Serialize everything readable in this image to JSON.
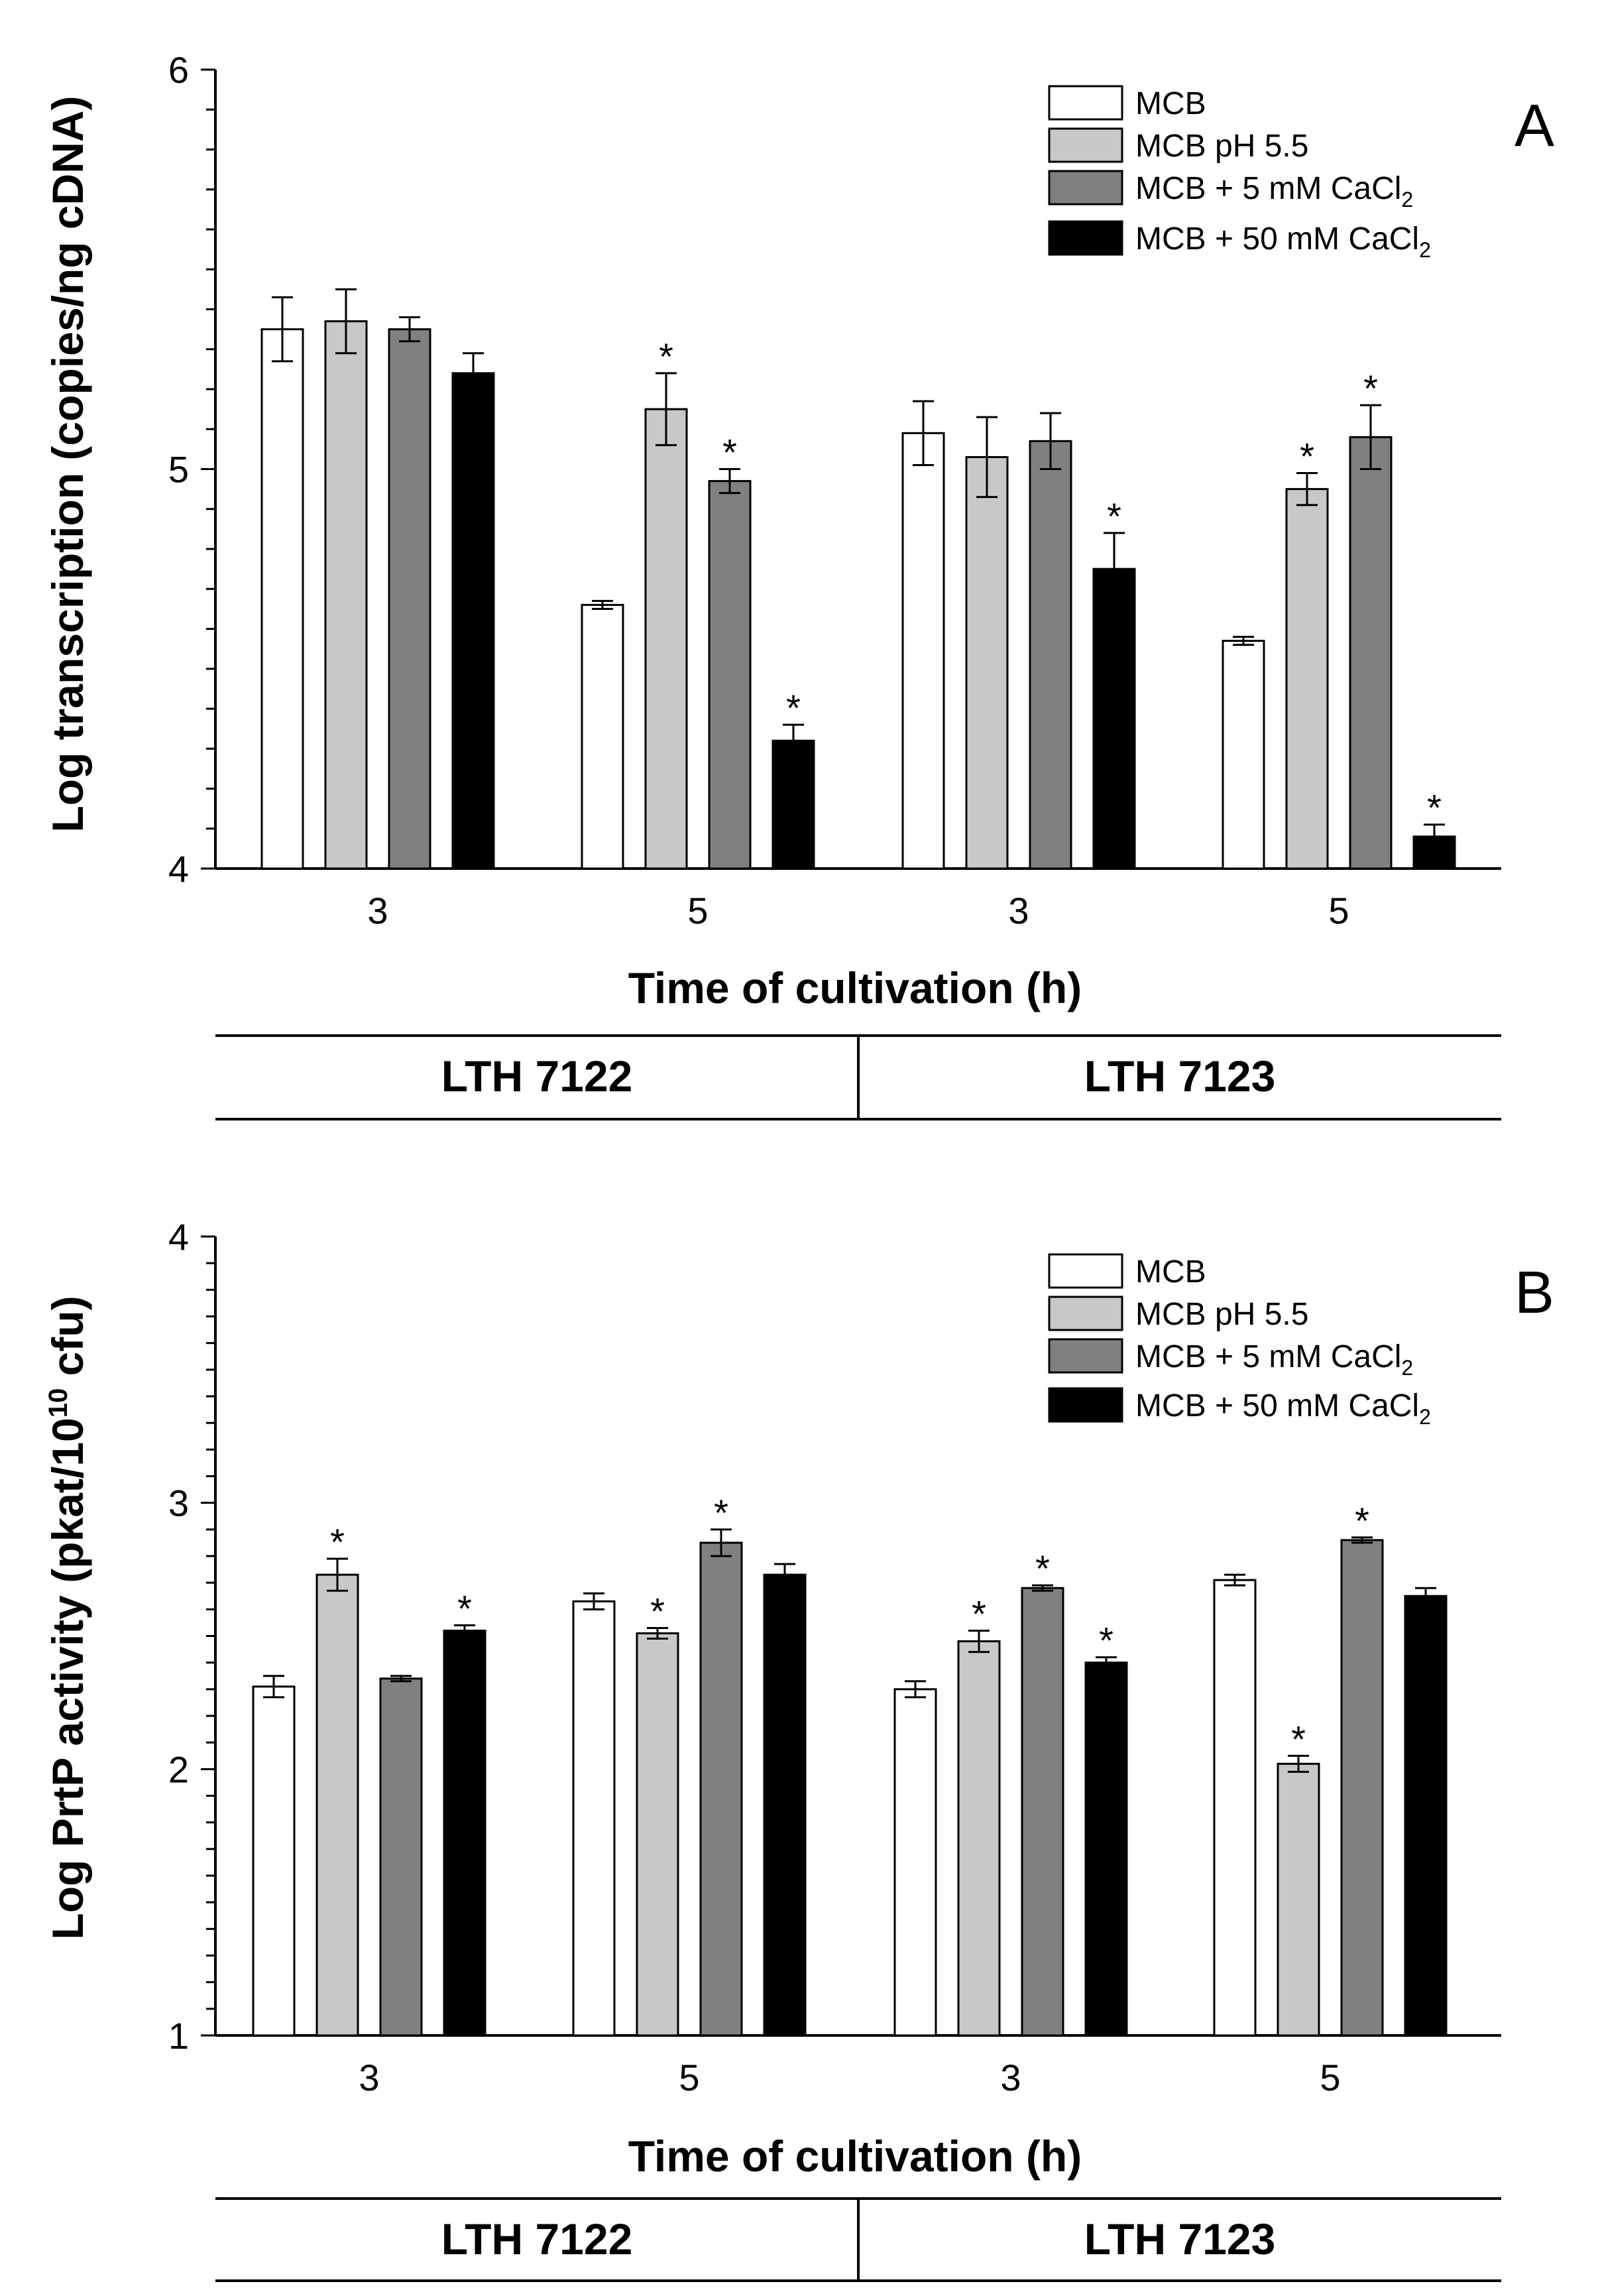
{
  "chart_data": [
    {
      "type": "bar",
      "panel_label": "A",
      "ylabel": "Log transcription (copies/ng cDNA)",
      "xlabel": "Time of cultivation (h)",
      "ylim": [
        4,
        6
      ],
      "yticks": [
        "4",
        "5",
        "6"
      ],
      "categories": [
        "3",
        "5",
        "3",
        "5"
      ],
      "strains": [
        "LTH 7122",
        "LTH 7123"
      ],
      "series": [
        {
          "name": "MCB",
          "color": "#ffffff",
          "values": [
            5.35,
            4.66,
            5.09,
            4.57
          ],
          "errors": [
            0.08,
            0.01,
            0.08,
            0.01
          ],
          "significant": [
            false,
            false,
            false,
            false
          ]
        },
        {
          "name": "MCB pH 5.5",
          "color": "#c8c8c8",
          "values": [
            5.37,
            5.15,
            5.03,
            4.95
          ],
          "errors": [
            0.08,
            0.09,
            0.1,
            0.04
          ],
          "significant": [
            false,
            true,
            false,
            true
          ]
        },
        {
          "name": "MCB + 5 mM CaCl2",
          "color": "#808080",
          "values": [
            5.35,
            4.97,
            5.07,
            5.08
          ],
          "errors": [
            0.03,
            0.03,
            0.07,
            0.08
          ],
          "significant": [
            false,
            true,
            false,
            true
          ]
        },
        {
          "name": "MCB + 50 mM CaCl2",
          "color": "#000000",
          "values": [
            5.24,
            4.32,
            4.75,
            4.08
          ],
          "errors": [
            0.05,
            0.04,
            0.09,
            0.03
          ],
          "significant": [
            false,
            true,
            true,
            true
          ]
        }
      ]
    },
    {
      "type": "bar",
      "panel_label": "B",
      "ylabel": "Log PrtP activity (pkat/10^10 cfu)",
      "xlabel": "Time of cultivation (h)",
      "ylim": [
        1,
        4
      ],
      "yticks": [
        "1",
        "2",
        "3",
        "4"
      ],
      "categories": [
        "3",
        "5",
        "3",
        "5"
      ],
      "strains": [
        "LTH 7122",
        "LTH 7123"
      ],
      "series": [
        {
          "name": "MCB",
          "color": "#ffffff",
          "values": [
            2.31,
            2.63,
            2.3,
            2.71
          ],
          "errors": [
            0.04,
            0.03,
            0.03,
            0.02
          ],
          "significant": [
            false,
            false,
            false,
            false
          ]
        },
        {
          "name": "MCB pH 5.5",
          "color": "#c8c8c8",
          "values": [
            2.73,
            2.51,
            2.48,
            2.02
          ],
          "errors": [
            0.06,
            0.02,
            0.04,
            0.03
          ],
          "significant": [
            true,
            true,
            true,
            true
          ]
        },
        {
          "name": "MCB + 5 mM CaCl2",
          "color": "#808080",
          "values": [
            2.34,
            2.85,
            2.68,
            2.86
          ],
          "errors": [
            0.01,
            0.05,
            0.01,
            0.01
          ],
          "significant": [
            false,
            true,
            true,
            true
          ]
        },
        {
          "name": "MCB + 50 mM CaCl2",
          "color": "#000000",
          "values": [
            2.52,
            2.73,
            2.4,
            2.65
          ],
          "errors": [
            0.02,
            0.04,
            0.02,
            0.03
          ],
          "significant": [
            true,
            false,
            true,
            false
          ]
        }
      ]
    }
  ],
  "legend": {
    "mcb": "MCB",
    "ph": "MCB pH 5.5",
    "ca5_prefix": "MCB + 5 mM CaCl",
    "ca50_prefix": "MCB + 50 mM CaCl",
    "subscript": "2"
  },
  "panels": {
    "a": {
      "ylabel": "Log transcription (copies/ng cDNA)",
      "xlabel": "Time of cultivation (h)",
      "letter": "A",
      "strain1": "LTH 7122",
      "strain2": "LTH 7123"
    },
    "b": {
      "ylabel_prefix": "Log PrtP activity (pkat/10",
      "ylabel_sup": "10",
      "ylabel_suffix": " cfu)",
      "xlabel": "Time of cultivation (h)",
      "letter": "B",
      "strain1": "LTH 7122",
      "strain2": "LTH 7123"
    }
  },
  "star_symbol": "*"
}
